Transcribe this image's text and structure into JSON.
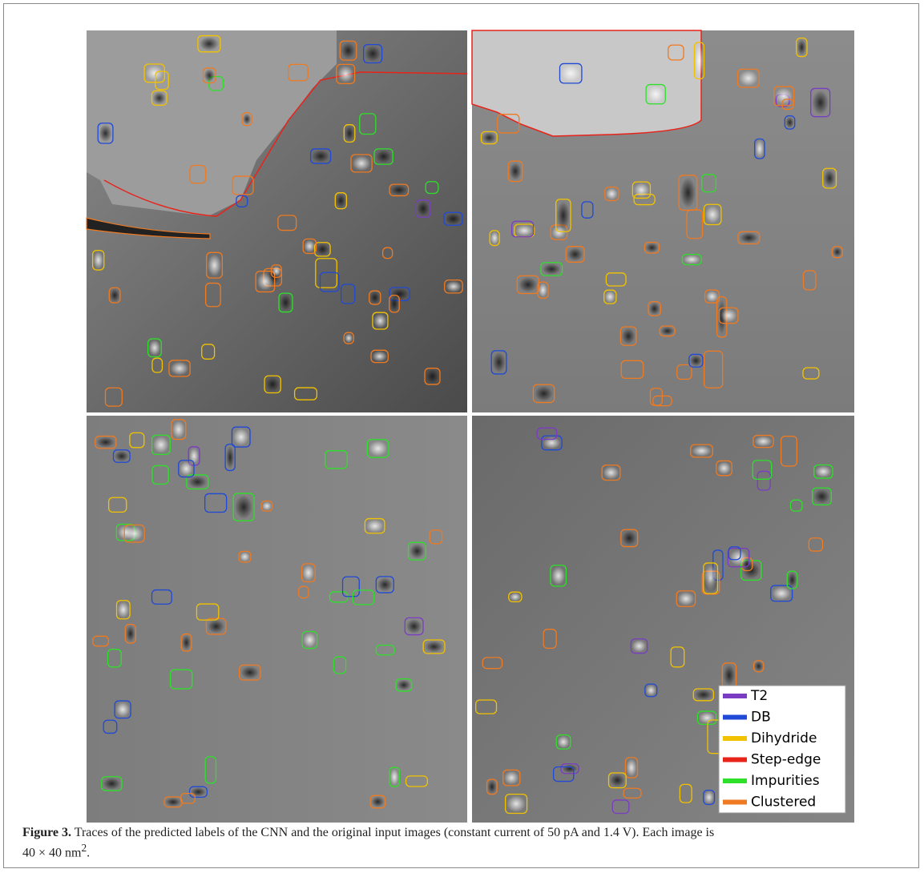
{
  "figure": {
    "legend": [
      {
        "label": "T2",
        "color": "#7a3cc2"
      },
      {
        "label": "DB",
        "color": "#1f49d6"
      },
      {
        "label": "Dihydride",
        "color": "#f2c200"
      },
      {
        "label": "Step-edge",
        "color": "#e8231a"
      },
      {
        "label": "Impurities",
        "color": "#2ee02a"
      },
      {
        "label": "Clustered",
        "color": "#ee7a22"
      }
    ],
    "caption": {
      "label": "Figure 3.",
      "text": "Traces of the predicted labels of the CNN and the original input images (constant current of 50 pA and 1.4 V). Each image is",
      "formula": "40 × 40 nm",
      "superscript": "2",
      "end": "."
    }
  }
}
